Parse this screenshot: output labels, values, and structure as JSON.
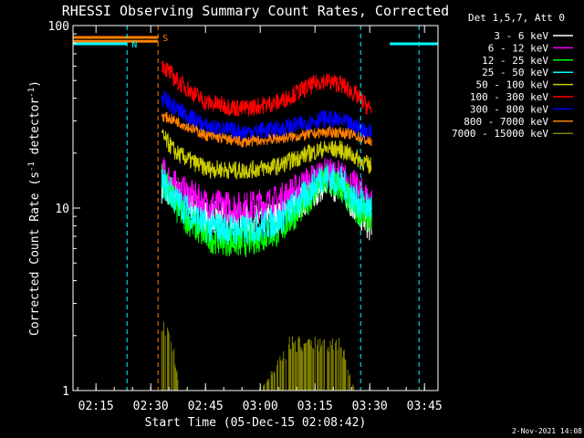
{
  "chart_data": {
    "type": "line",
    "title": "RHESSI Observing Summary Count Rates, Corrected",
    "xlabel": "Start Time (05-Dec-15 02:08:42)",
    "ylabel": "Corrected Count Rate (s⁻¹ detector⁻¹)",
    "ylabel_parts": [
      "Corrected Count Rate (s",
      "-1",
      " detector",
      "-1",
      ")"
    ],
    "y_scale": "log",
    "ylim": [
      1,
      100
    ],
    "xlim": [
      "02:08:42",
      "03:48:42"
    ],
    "x_tick_labels": [
      "02:15",
      "02:30",
      "02:45",
      "03:00",
      "03:15",
      "03:30",
      "03:45"
    ],
    "y_tick_labels": [
      "1",
      "10",
      "100"
    ],
    "legend_title": "Det 1,5,7, Att 0",
    "legend_placement": "right, outside plot",
    "footer_date": "2-Nov-2021 14:08",
    "flags": [
      {
        "label": "N",
        "color": "#00ffff",
        "start": "02:08:42",
        "end": "02:23:30"
      },
      {
        "label": "N",
        "color": "#00ffff",
        "start": "03:35:30",
        "end": "03:48:42"
      },
      {
        "label": "S",
        "color": "#ff8000",
        "start": "02:08:42",
        "end": "02:32:00"
      }
    ],
    "vlines": [
      {
        "time": "02:23:30",
        "color": "#00ffff"
      },
      {
        "time": "02:32:00",
        "color": "#ff8000"
      },
      {
        "time": "03:27:30",
        "color": "#00ffff"
      },
      {
        "time": "03:43:30",
        "color": "#00ffff"
      }
    ],
    "data_start": "02:33:00",
    "data_end": "03:30:30",
    "series": [
      {
        "name": "3 - 6 keV",
        "color": "#ffffff",
        "times": [
          "02:33:00",
          "02:37:00",
          "02:45:00",
          "02:55:00",
          "03:05:00",
          "03:12:00",
          "03:17:00",
          "03:22:00",
          "03:26:00",
          "03:30:00"
        ],
        "values": [
          13,
          12,
          9,
          8.5,
          9,
          11,
          13.5,
          13,
          10,
          8
        ]
      },
      {
        "name": "6 - 12 keV",
        "color": "#ff00ff",
        "times": [
          "02:33:00",
          "02:37:00",
          "02:45:00",
          "02:55:00",
          "03:05:00",
          "03:12:00",
          "03:17:00",
          "03:22:00",
          "03:26:00",
          "03:30:00"
        ],
        "values": [
          16,
          13,
          10.5,
          10,
          11,
          13.5,
          15.5,
          15,
          13,
          11
        ]
      },
      {
        "name": "12 - 25 keV",
        "color": "#00ff00",
        "times": [
          "02:33:00",
          "02:37:00",
          "02:45:00",
          "02:55:00",
          "03:05:00",
          "03:12:00",
          "03:17:00",
          "03:22:00",
          "03:26:00",
          "03:30:00"
        ],
        "values": [
          15,
          10,
          7,
          6.5,
          7.5,
          10.5,
          14,
          13,
          10,
          9
        ]
      },
      {
        "name": "25 - 50 keV",
        "color": "#00ffff",
        "times": [
          "02:33:00",
          "02:37:00",
          "02:45:00",
          "02:55:00",
          "03:05:00",
          "03:12:00",
          "03:17:00",
          "03:22:00",
          "03:26:00",
          "03:30:00"
        ],
        "values": [
          14,
          11,
          8,
          7.5,
          8.5,
          11.5,
          15,
          14,
          11,
          10
        ]
      },
      {
        "name": "50 - 100 keV",
        "color": "#cccc00",
        "times": [
          "02:33:00",
          "02:37:00",
          "02:45:00",
          "02:55:00",
          "03:05:00",
          "03:12:00",
          "03:17:00",
          "03:22:00",
          "03:26:00",
          "03:30:00"
        ],
        "values": [
          25,
          20,
          16.5,
          16,
          17,
          19.5,
          21,
          21,
          19,
          17
        ]
      },
      {
        "name": "100 - 300 keV",
        "color": "#ff0000",
        "times": [
          "02:33:00",
          "02:37:00",
          "02:45:00",
          "02:55:00",
          "03:05:00",
          "03:12:00",
          "03:17:00",
          "03:22:00",
          "03:26:00",
          "03:30:00"
        ],
        "values": [
          62,
          50,
          38,
          35,
          38,
          45,
          50,
          48,
          42,
          35
        ]
      },
      {
        "name": "300 - 800 keV",
        "color": "#0000ff",
        "times": [
          "02:33:00",
          "02:37:00",
          "02:45:00",
          "02:55:00",
          "03:05:00",
          "03:12:00",
          "03:17:00",
          "03:22:00",
          "03:26:00",
          "03:30:00"
        ],
        "values": [
          40,
          35,
          28,
          26,
          27,
          29,
          31,
          30,
          28,
          26
        ]
      },
      {
        "name": "800 - 7000 keV",
        "color": "#ff8000",
        "times": [
          "02:08:42",
          "02:32:00",
          "02:33:00",
          "02:37:00",
          "02:45:00",
          "02:55:00",
          "03:05:00",
          "03:12:00",
          "03:17:00",
          "03:22:00",
          "03:26:00",
          "03:30:00"
        ],
        "values": [
          82,
          82,
          32,
          30,
          25,
          23,
          24,
          25,
          26,
          26,
          25,
          23
        ]
      },
      {
        "name": "7000 - 15000 keV",
        "color": "#808000",
        "times": [
          "02:33:00",
          "02:36:00",
          "02:38:00",
          "02:50:00",
          "03:00:00",
          "03:05:00",
          "03:08:00",
          "03:15:00",
          "03:22:00",
          "03:26:00"
        ],
        "values": [
          2.5,
          2,
          1,
          1,
          1,
          1.5,
          2,
          2,
          2,
          1
        ]
      }
    ]
  }
}
